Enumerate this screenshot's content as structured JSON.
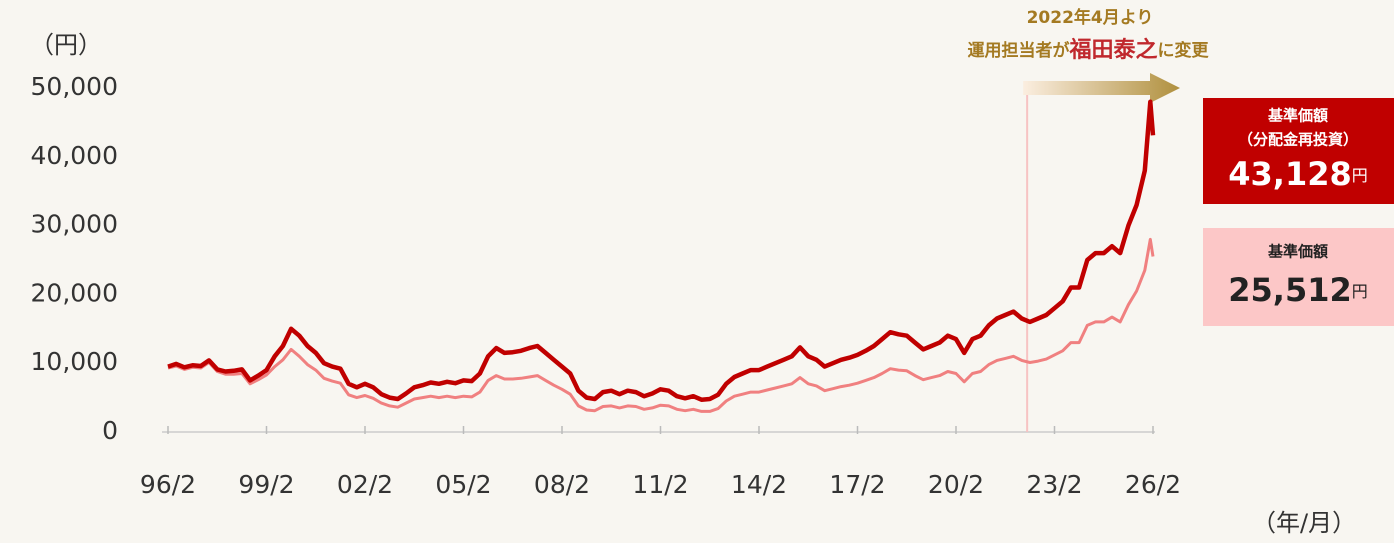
{
  "chart_data": {
    "type": "line",
    "y_axis_label": "（円）",
    "x_axis_label": "（年/月）",
    "x": [
      "96/2",
      "96/5",
      "96/8",
      "96/11",
      "97/2",
      "97/5",
      "97/8",
      "97/11",
      "98/2",
      "98/5",
      "98/8",
      "98/11",
      "99/2",
      "99/5",
      "99/8",
      "99/11",
      "00/2",
      "00/5",
      "00/8",
      "00/11",
      "01/2",
      "01/5",
      "01/8",
      "01/11",
      "02/2",
      "02/5",
      "02/8",
      "02/11",
      "03/2",
      "03/5",
      "03/8",
      "03/11",
      "04/2",
      "04/5",
      "04/8",
      "04/11",
      "05/2",
      "05/5",
      "05/8",
      "05/11",
      "06/2",
      "06/5",
      "06/8",
      "06/11",
      "07/2",
      "07/5",
      "07/8",
      "07/11",
      "08/2",
      "08/5",
      "08/8",
      "08/11",
      "09/2",
      "09/5",
      "09/8",
      "09/11",
      "10/2",
      "10/5",
      "10/8",
      "10/11",
      "11/2",
      "11/5",
      "11/8",
      "11/11",
      "12/2",
      "12/5",
      "12/8",
      "12/11",
      "13/2",
      "13/5",
      "13/8",
      "13/11",
      "14/2",
      "14/5",
      "14/8",
      "14/11",
      "15/2",
      "15/5",
      "15/8",
      "15/11",
      "16/2",
      "16/5",
      "16/8",
      "16/11",
      "17/2",
      "17/5",
      "17/8",
      "17/11",
      "18/2",
      "18/5",
      "18/8",
      "18/11",
      "19/2",
      "19/5",
      "19/8",
      "19/11",
      "20/2",
      "20/5",
      "20/8",
      "20/11",
      "21/2",
      "21/5",
      "21/8",
      "21/11",
      "22/2",
      "22/5",
      "22/8",
      "22/11",
      "23/2",
      "23/5",
      "23/8",
      "23/11",
      "24/2",
      "24/5",
      "24/8",
      "24/11",
      "25/2",
      "25/5",
      "25/8",
      "25/11",
      "26/1",
      "26/2"
    ],
    "series": [
      {
        "name": "基準価額",
        "subname": "（分配金再投資）",
        "end_label": "43,128",
        "unit": "円",
        "color": "#c00000",
        "values": [
          9500,
          9900,
          9400,
          9700,
          9600,
          10400,
          9100,
          8800,
          8900,
          9100,
          7500,
          8200,
          9000,
          11000,
          12500,
          15000,
          14000,
          12500,
          11500,
          10000,
          9500,
          9200,
          7000,
          6500,
          7000,
          6500,
          5500,
          5000,
          4800,
          5600,
          6500,
          6800,
          7200,
          7000,
          7300,
          7100,
          7500,
          7400,
          8500,
          11000,
          12200,
          11500,
          11600,
          11800,
          12200,
          12500,
          11500,
          10500,
          9500,
          8500,
          6000,
          5000,
          4800,
          5800,
          6000,
          5500,
          6000,
          5800,
          5200,
          5600,
          6200,
          6000,
          5200,
          4900,
          5200,
          4700,
          4800,
          5400,
          7000,
          8000,
          8500,
          9000,
          9000,
          9500,
          10000,
          10500,
          11000,
          12300,
          11000,
          10500,
          9500,
          10000,
          10500,
          10800,
          11200,
          11800,
          12500,
          13500,
          14500,
          14200,
          14000,
          13000,
          12000,
          12500,
          13000,
          14000,
          13500,
          11500,
          13500,
          14000,
          15500,
          16500,
          17000,
          17500,
          16500,
          16000,
          16500,
          17000,
          18000,
          19000,
          21000,
          21000,
          25000,
          26000,
          26000,
          27000,
          26000,
          30000,
          33000,
          38000,
          48000,
          43128
        ]
      },
      {
        "name": "基準価額",
        "end_label": "25,512",
        "unit": "円",
        "color": "#f08080",
        "values": [
          9300,
          9600,
          9100,
          9400,
          9300,
          10100,
          8800,
          8400,
          8400,
          8500,
          7000,
          7600,
          8300,
          9500,
          10500,
          12000,
          11000,
          9800,
          9000,
          7800,
          7400,
          7100,
          5400,
          5000,
          5300,
          4900,
          4200,
          3800,
          3600,
          4200,
          4800,
          5000,
          5200,
          5000,
          5200,
          5000,
          5200,
          5100,
          5800,
          7500,
          8200,
          7700,
          7700,
          7800,
          8000,
          8200,
          7500,
          6800,
          6200,
          5500,
          3800,
          3200,
          3100,
          3700,
          3800,
          3500,
          3800,
          3700,
          3300,
          3500,
          3900,
          3800,
          3300,
          3100,
          3300,
          3000,
          3000,
          3400,
          4500,
          5200,
          5500,
          5800,
          5800,
          6100,
          6400,
          6700,
          7000,
          7900,
          7000,
          6700,
          6000,
          6300,
          6600,
          6800,
          7100,
          7500,
          7900,
          8500,
          9200,
          9000,
          8900,
          8200,
          7600,
          7900,
          8200,
          8800,
          8500,
          7300,
          8500,
          8800,
          9800,
          10400,
          10700,
          11000,
          10400,
          10100,
          10300,
          10600,
          11200,
          11800,
          13000,
          13000,
          15500,
          16000,
          16000,
          16700,
          16000,
          18500,
          20500,
          23500,
          28000,
          25512
        ]
      }
    ],
    "ylim": [
      0,
      50000
    ],
    "yticks": [
      0,
      {
        "value": 10000,
        "label": "10,000"
      },
      {
        "value": 20000,
        "label": "20,000"
      },
      {
        "value": 30000,
        "label": "30,000"
      },
      {
        "value": 40000,
        "label": "40,000"
      },
      {
        "value": 50000,
        "label": "50,000"
      }
    ],
    "xticks": [
      "96/2",
      "99/2",
      "02/2",
      "05/2",
      "08/2",
      "11/2",
      "14/2",
      "17/2",
      "20/2",
      "23/2",
      "26/2"
    ],
    "annotation": {
      "x": "22/4",
      "line1": "2022年4月より",
      "line2a": "運用担当者が",
      "line2b": "福田泰之",
      "line2c": "に変更"
    }
  }
}
